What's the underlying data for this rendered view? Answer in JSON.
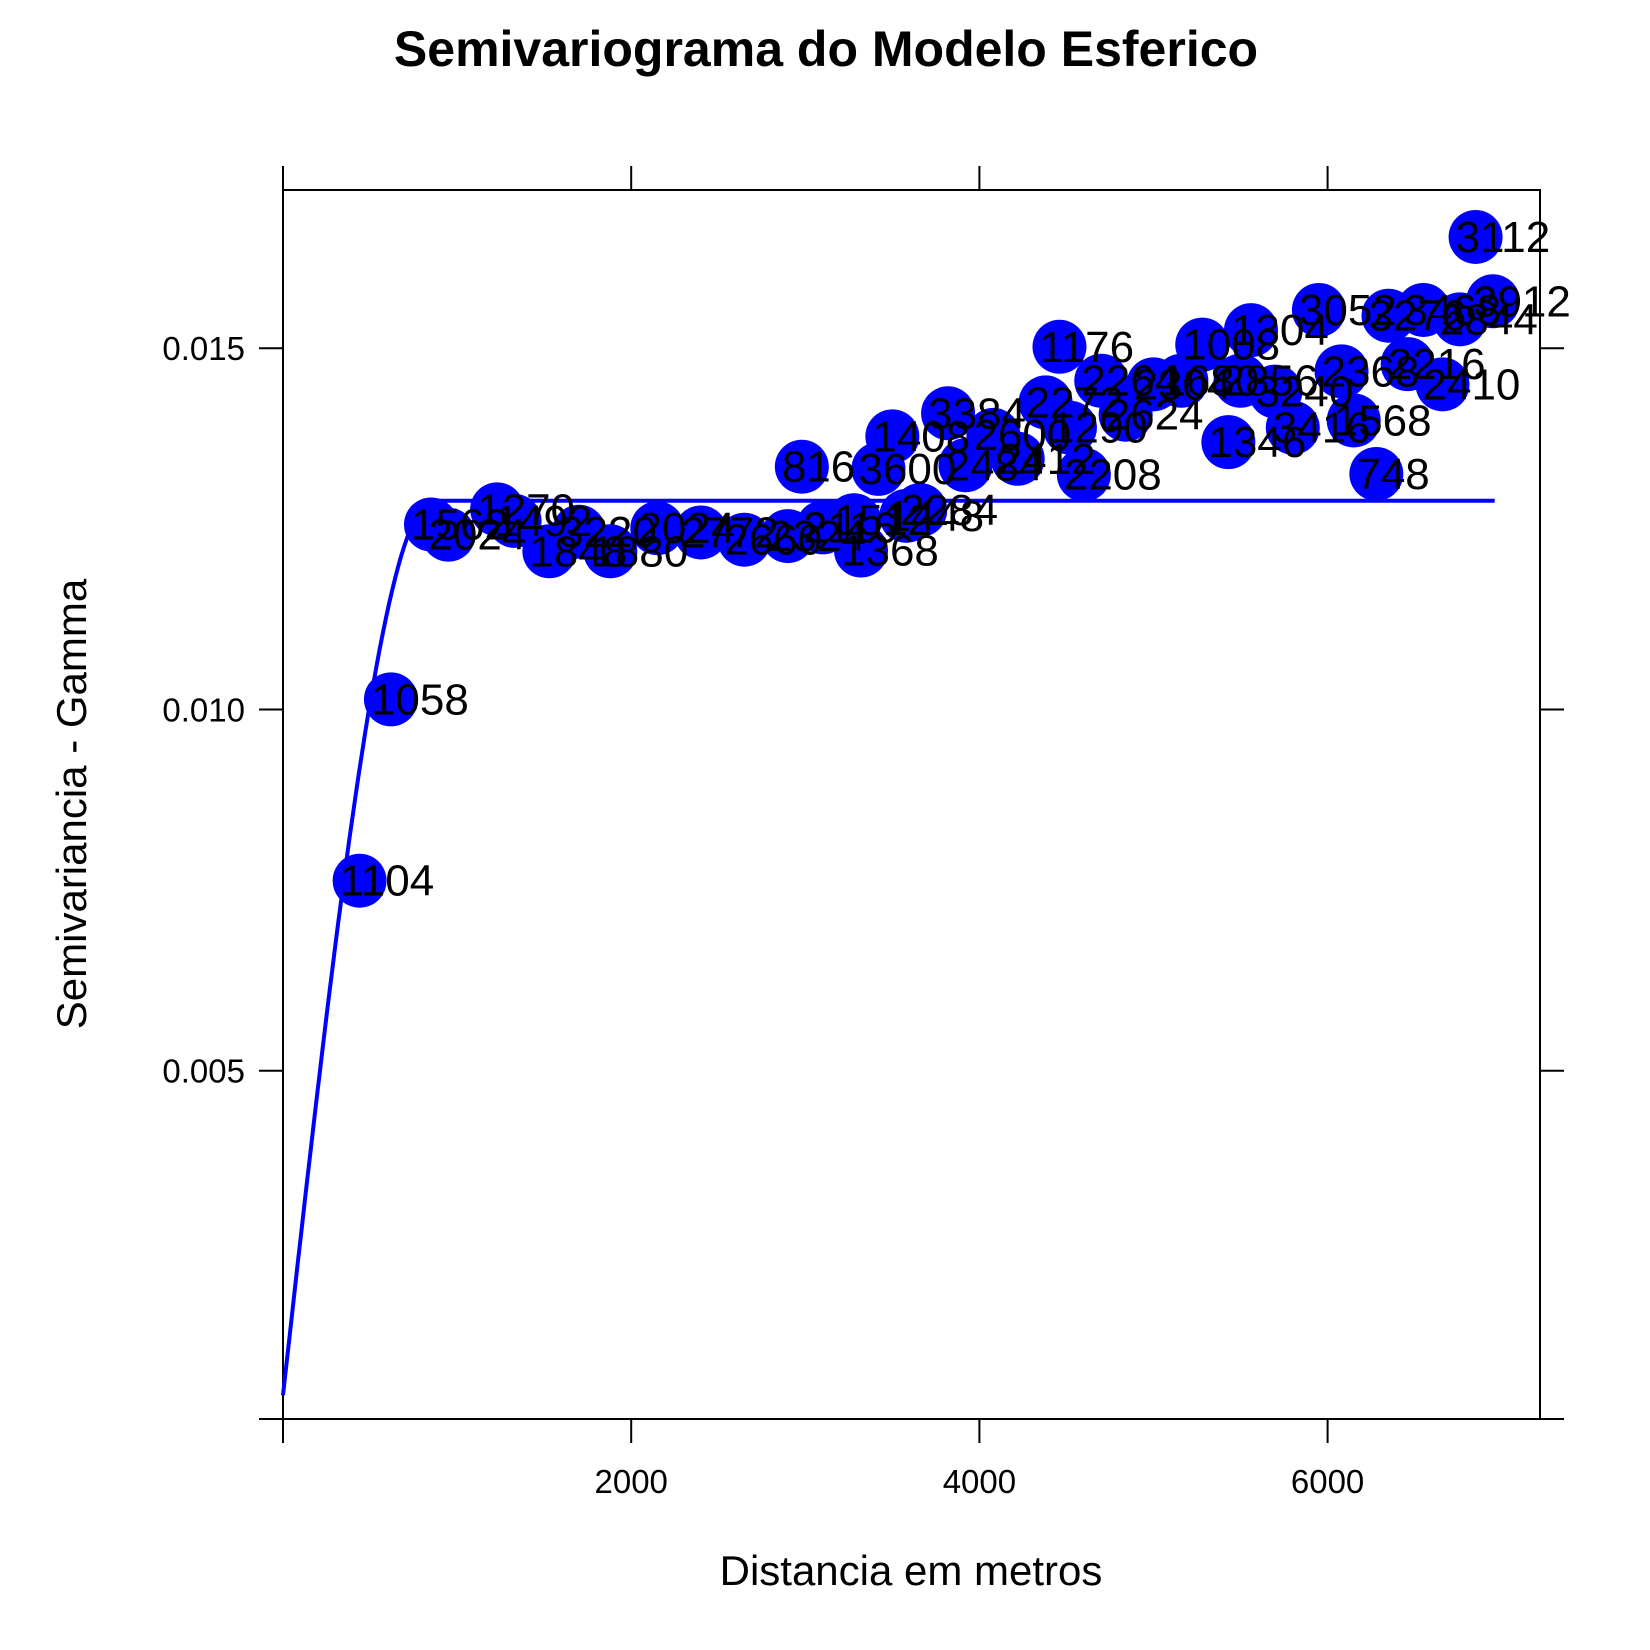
{
  "chart_data": {
    "type": "scatter",
    "title": "Semivariograma do Modelo Esferico",
    "xlabel": "Distancia em metros",
    "ylabel": "Semivariancia - Gamma",
    "xlim": [
      0,
      7220
    ],
    "ylim": [
      0.00018,
      0.01719
    ],
    "x_ticks": [
      2000,
      4000,
      6000
    ],
    "x_tick_labels": [
      "2000",
      "4000",
      "6000"
    ],
    "y_ticks": [
      0.005,
      0.01,
      0.015
    ],
    "y_tick_labels": [
      "0.005",
      "0.010",
      "0.015"
    ],
    "grid": false,
    "colors": {
      "points": "#0000ff",
      "model_line": "#0000ff",
      "axes": "#000000"
    },
    "points": [
      {
        "x": 440,
        "y": 0.00763,
        "label": "1104"
      },
      {
        "x": 620,
        "y": 0.01014,
        "label": "1058"
      },
      {
        "x": 850,
        "y": 0.01256,
        "label": "1562"
      },
      {
        "x": 950,
        "y": 0.01242,
        "label": "2024"
      },
      {
        "x": 1230,
        "y": 0.01277,
        "label": "1270"
      },
      {
        "x": 1330,
        "y": 0.01261,
        "label": "1492"
      },
      {
        "x": 1530,
        "y": 0.01219,
        "label": "1848"
      },
      {
        "x": 1700,
        "y": 0.01246,
        "label": "3220"
      },
      {
        "x": 1880,
        "y": 0.01219,
        "label": "1880"
      },
      {
        "x": 2150,
        "y": 0.01251,
        "label": "2024"
      },
      {
        "x": 2400,
        "y": 0.01245,
        "label": "2772"
      },
      {
        "x": 2650,
        "y": 0.01235,
        "label": "2660"
      },
      {
        "x": 2900,
        "y": 0.0124,
        "label": "2324"
      },
      {
        "x": 2980,
        "y": 0.01336,
        "label": "816"
      },
      {
        "x": 3100,
        "y": 0.01252,
        "label": "2116"
      },
      {
        "x": 3280,
        "y": 0.01262,
        "label": "1512"
      },
      {
        "x": 3320,
        "y": 0.0122,
        "label": "1368"
      },
      {
        "x": 3420,
        "y": 0.01333,
        "label": "3600"
      },
      {
        "x": 3500,
        "y": 0.01378,
        "label": "1408"
      },
      {
        "x": 3580,
        "y": 0.01268,
        "label": "1448"
      },
      {
        "x": 3660,
        "y": 0.01276,
        "label": "2284"
      },
      {
        "x": 3820,
        "y": 0.0141,
        "label": "3384"
      },
      {
        "x": 3920,
        "y": 0.01338,
        "label": "2484"
      },
      {
        "x": 4080,
        "y": 0.0138,
        "label": "2600"
      },
      {
        "x": 4220,
        "y": 0.01347,
        "label": "2412"
      },
      {
        "x": 4380,
        "y": 0.01425,
        "label": "2272"
      },
      {
        "x": 4460,
        "y": 0.01502,
        "label": "1176"
      },
      {
        "x": 4520,
        "y": 0.0139,
        "label": "1290"
      },
      {
        "x": 4600,
        "y": 0.01325,
        "label": "2208"
      },
      {
        "x": 4700,
        "y": 0.01455,
        "label": "2264"
      },
      {
        "x": 4840,
        "y": 0.01408,
        "label": "2624"
      },
      {
        "x": 5000,
        "y": 0.0145,
        "label": "2304"
      },
      {
        "x": 5160,
        "y": 0.01455,
        "label": "1680"
      },
      {
        "x": 5280,
        "y": 0.01505,
        "label": "1008"
      },
      {
        "x": 5430,
        "y": 0.0137,
        "label": "1346"
      },
      {
        "x": 5500,
        "y": 0.01455,
        "label": "2856"
      },
      {
        "x": 5560,
        "y": 0.01525,
        "label": "1304"
      },
      {
        "x": 5700,
        "y": 0.0144,
        "label": "3240"
      },
      {
        "x": 5800,
        "y": 0.0139,
        "label": "3416"
      },
      {
        "x": 5950,
        "y": 0.01553,
        "label": "3052"
      },
      {
        "x": 6080,
        "y": 0.01468,
        "label": "2368"
      },
      {
        "x": 6150,
        "y": 0.014,
        "label": "1568"
      },
      {
        "x": 6280,
        "y": 0.01326,
        "label": "748"
      },
      {
        "x": 6350,
        "y": 0.01545,
        "label": "3276"
      },
      {
        "x": 6460,
        "y": 0.01478,
        "label": "2216"
      },
      {
        "x": 6550,
        "y": 0.01553,
        "label": "3468"
      },
      {
        "x": 6660,
        "y": 0.0145,
        "label": "2410"
      },
      {
        "x": 6760,
        "y": 0.0154,
        "label": "2844"
      },
      {
        "x": 6850,
        "y": 0.01654,
        "label": "3112"
      },
      {
        "x": 6950,
        "y": 0.01565,
        "label": "3912"
      }
    ],
    "model_line": {
      "model": "spherical",
      "nugget": 0.00051,
      "sill": 0.01289,
      "range": 860,
      "x_max": 6960
    }
  }
}
